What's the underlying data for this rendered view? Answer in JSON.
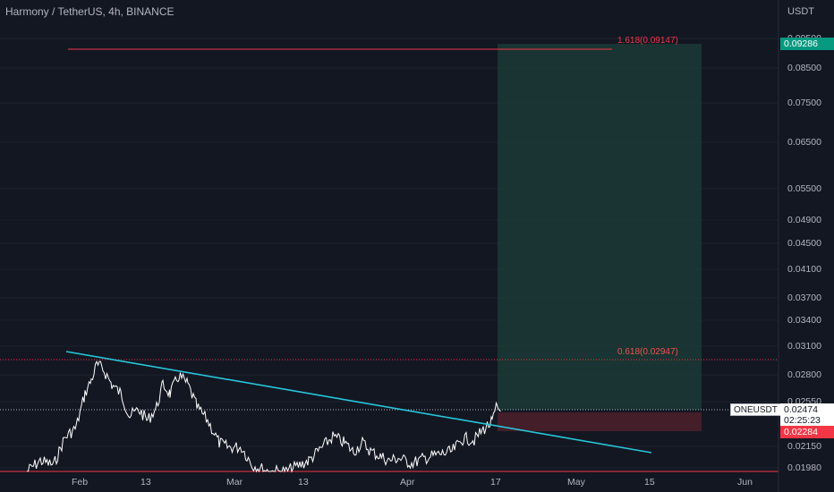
{
  "header": {
    "title": "Harmony / TetherUS, 4h, BINANCE",
    "currency": "USDT"
  },
  "y_axis_ticks": [
    "0.09500",
    "0.08500",
    "0.07500",
    "0.06500",
    "0.05500",
    "0.04900",
    "0.04500",
    "0.04100",
    "0.03700",
    "0.03400",
    "0.03100",
    "0.02800",
    "0.02550",
    "0.02150",
    "0.01980"
  ],
  "x_axis_ticks": [
    "Feb",
    "13",
    "Mar",
    "13",
    "Apr",
    "17",
    "May",
    "15",
    "Jun"
  ],
  "fib_levels": [
    {
      "label": "1.618(0.09147)",
      "price": 0.09147
    },
    {
      "label": "0.618(0.02947)",
      "price": 0.02947
    }
  ],
  "price_tags": {
    "target": "0.09286",
    "stop": "0.02284",
    "current_symbol": "ONEUSDT",
    "current_price": "0.02474",
    "countdown": "02:25:23"
  },
  "colors": {
    "background": "#131722",
    "trendline": "#26c6da",
    "target_zone": "#1b3a35",
    "stop_zone": "#4a1f2a",
    "fib_line": "#f23645",
    "target_tag": "#089981",
    "stop_tag": "#f23645",
    "candles": "#ffffff"
  }
}
